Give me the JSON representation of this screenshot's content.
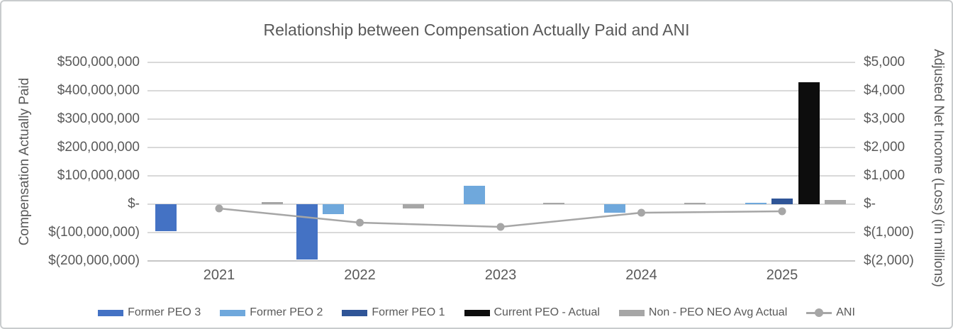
{
  "chart_data": {
    "type": "combo bar+line",
    "title": "Relationship between Compensation Actually Paid and ANI",
    "categories": [
      "2021",
      "2022",
      "2023",
      "2024",
      "2025"
    ],
    "left_axis": {
      "label": "Compensation Actually Paid",
      "tick_labels": [
        "$500,000,000",
        "$400,000,000",
        "$300,000,000",
        "$200,000,000",
        "$100,000,000",
        "$-",
        "$(100,000,000)",
        "$(200,000,000)"
      ],
      "tick_values": [
        500000000,
        400000000,
        300000000,
        200000000,
        100000000,
        0,
        -100000000,
        -200000000
      ],
      "max": 500000000,
      "min": -200000000
    },
    "right_axis": {
      "label": "Adjusted Net Income (Loss) (in millions)",
      "tick_labels": [
        "$5,000",
        "$4,000",
        "$3,000",
        "$2,000",
        "$1,000",
        "$-",
        "$(1,000)",
        "$(2,000)"
      ],
      "tick_values": [
        5000,
        4000,
        3000,
        2000,
        1000,
        0,
        -1000,
        -2000
      ],
      "max": 5000,
      "min": -2000
    },
    "series": [
      {
        "name": "Former PEO 3",
        "type": "bar",
        "axis": "left",
        "color": "#4472C4",
        "values": [
          -95000000,
          -195000000,
          0,
          0,
          0
        ]
      },
      {
        "name": "Former PEO 2",
        "type": "bar",
        "axis": "left",
        "color": "#6FA8DC",
        "values": [
          0,
          -35000000,
          65000000,
          -30000000,
          5000000
        ]
      },
      {
        "name": "Former PEO 1",
        "type": "bar",
        "axis": "left",
        "color": "#2F5597",
        "values": [
          0,
          0,
          0,
          0,
          20000000
        ]
      },
      {
        "name": "Current PEO - Actual",
        "type": "bar",
        "axis": "left",
        "color": "#0D0D0D",
        "values": [
          0,
          0,
          0,
          0,
          430000000
        ]
      },
      {
        "name": "Non - PEO NEO Avg Actual",
        "type": "bar",
        "axis": "left",
        "color": "#A6A6A6",
        "values": [
          7000000,
          -15000000,
          5000000,
          4000000,
          15000000
        ]
      },
      {
        "name": "ANI",
        "type": "line",
        "axis": "right",
        "color": "#A6A6A6",
        "values": [
          -150,
          -650,
          -800,
          -300,
          -250
        ]
      }
    ],
    "grid": true,
    "legend_position": "bottom",
    "colors": {
      "text": "#595959",
      "gridline": "#D9D9D9",
      "background": "#FFFFFF",
      "border": "#C9CCCE"
    }
  }
}
